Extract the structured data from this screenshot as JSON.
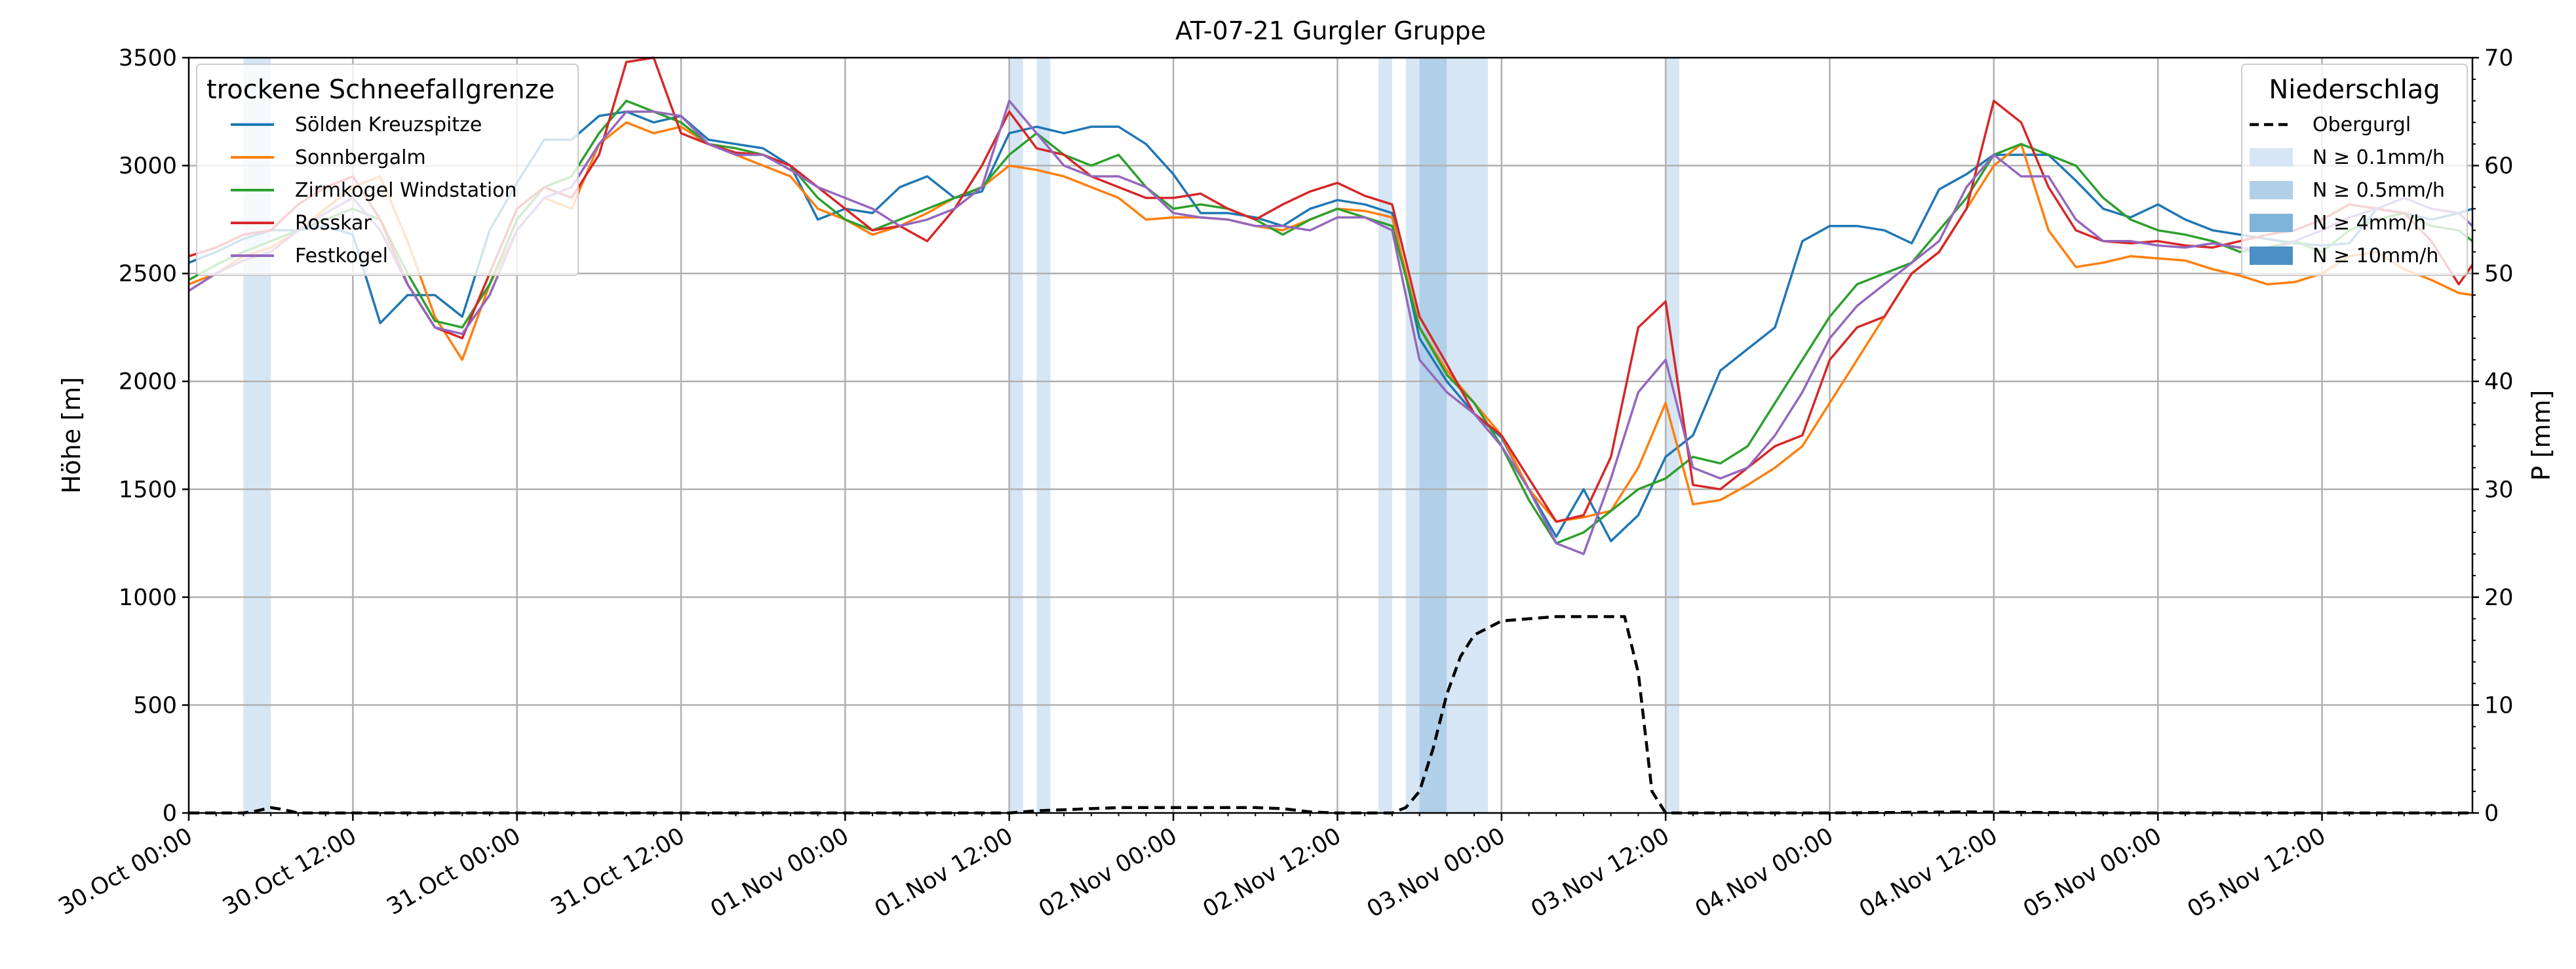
{
  "chart_data": {
    "type": "line",
    "title": "AT-07-21 Gurgler Gruppe",
    "ylabel": "Höhe [m]",
    "ylabel_right": "P [mm]",
    "ylim": [
      0,
      3500
    ],
    "ylim_right": [
      0,
      70
    ],
    "yticks": [
      0,
      500,
      1000,
      1500,
      2000,
      2500,
      3000,
      3500
    ],
    "yticks_right": [
      0,
      10,
      20,
      30,
      40,
      50,
      60,
      70
    ],
    "x_range_hours": [
      0,
      167
    ],
    "x_ticks": [
      {
        "h": 0,
        "label": "30.Oct 00:00"
      },
      {
        "h": 12,
        "label": "30.Oct 12:00"
      },
      {
        "h": 24,
        "label": "31.Oct 00:00"
      },
      {
        "h": 36,
        "label": "31.Oct 12:00"
      },
      {
        "h": 48,
        "label": "01.Nov 00:00"
      },
      {
        "h": 60,
        "label": "01.Nov 12:00"
      },
      {
        "h": 72,
        "label": "02.Nov 00:00"
      },
      {
        "h": 84,
        "label": "02.Nov 12:00"
      },
      {
        "h": 96,
        "label": "03.Nov 00:00"
      },
      {
        "h": 108,
        "label": "03.Nov 12:00"
      },
      {
        "h": 120,
        "label": "04.Nov 00:00"
      },
      {
        "h": 132,
        "label": "04.Nov 12:00"
      },
      {
        "h": 144,
        "label": "05.Nov 00:00"
      },
      {
        "h": 156,
        "label": "05.Nov 12:00"
      }
    ],
    "grid": true,
    "legend_left": {
      "title": "trockene Schneefallgrenze",
      "position": "top-left"
    },
    "legend_right": {
      "title": "Niederschlag",
      "position": "top-right",
      "entries": [
        {
          "label": "Obergurgl",
          "style": "dashed-line",
          "color": "#000000"
        },
        {
          "label": "N ≥ 0.1mm/h",
          "color": "#d6e6f4"
        },
        {
          "label": "N ≥ 0.5mm/h",
          "color": "#b0cfe8"
        },
        {
          "label": "N ≥ 4mm/h",
          "color": "#7fb3d8"
        },
        {
          "label": "N ≥ 10mm/h",
          "color": "#4a90c4"
        }
      ]
    },
    "precip_bands": [
      {
        "x0": 4,
        "x1": 6,
        "level": 0.1
      },
      {
        "x0": 60,
        "x1": 61,
        "level": 0.1
      },
      {
        "x0": 62,
        "x1": 63,
        "level": 0.1
      },
      {
        "x0": 87,
        "x1": 88,
        "level": 0.1
      },
      {
        "x0": 89,
        "x1": 90,
        "level": 0.1
      },
      {
        "x0": 90,
        "x1": 92,
        "level": 0.5
      },
      {
        "x0": 92,
        "x1": 95,
        "level": 0.1
      },
      {
        "x0": 108,
        "x1": 109,
        "level": 0.1
      }
    ],
    "series": [
      {
        "name": "Sölden Kreuzspitze",
        "color": "#1f77b4",
        "x": [
          0,
          2,
          4,
          6,
          8,
          10,
          12,
          14,
          16,
          18,
          20,
          22,
          24,
          26,
          28,
          30,
          32,
          34,
          36,
          38,
          40,
          42,
          44,
          46,
          48,
          50,
          52,
          54,
          56,
          58,
          60,
          62,
          64,
          66,
          68,
          70,
          72,
          74,
          76,
          78,
          80,
          82,
          84,
          86,
          88,
          90,
          92,
          94,
          96,
          98,
          100,
          102,
          104,
          106,
          108,
          110,
          112,
          114,
          116,
          118,
          120,
          122,
          124,
          126,
          128,
          130,
          132,
          134,
          136,
          138,
          140,
          142,
          144,
          146,
          148,
          150,
          152,
          154,
          156,
          158,
          160,
          162,
          164,
          166,
          167
        ],
        "y": [
          2550,
          2600,
          2660,
          2700,
          2700,
          2720,
          2680,
          2270,
          2400,
          2400,
          2300,
          2700,
          2920,
          3120,
          3120,
          3230,
          3250,
          3200,
          3230,
          3120,
          3100,
          3080,
          3000,
          2750,
          2800,
          2780,
          2900,
          2950,
          2850,
          2880,
          3150,
          3180,
          3150,
          3180,
          3180,
          3100,
          2960,
          2780,
          2780,
          2760,
          2720,
          2800,
          2840,
          2820,
          2780,
          2200,
          2000,
          1850,
          1740,
          1500,
          1280,
          1500,
          1260,
          1380,
          1650,
          1750,
          2050,
          2150,
          2250,
          2650,
          2720,
          2720,
          2700,
          2640,
          2890,
          2960,
          3050,
          3050,
          3050,
          2930,
          2800,
          2760,
          2820,
          2750,
          2700,
          2680,
          2660,
          2640,
          2630,
          2640,
          2800,
          2780,
          2750,
          2780,
          2800
        ]
      },
      {
        "name": "Sonnbergalm",
        "color": "#ff7f0e",
        "x": [
          0,
          2,
          4,
          6,
          8,
          10,
          12,
          14,
          16,
          18,
          20,
          22,
          24,
          26,
          28,
          30,
          32,
          34,
          36,
          38,
          40,
          42,
          44,
          46,
          48,
          50,
          52,
          54,
          56,
          58,
          60,
          62,
          64,
          66,
          68,
          70,
          72,
          74,
          76,
          78,
          80,
          82,
          84,
          86,
          88,
          90,
          92,
          94,
          96,
          98,
          100,
          102,
          104,
          106,
          108,
          110,
          112,
          114,
          116,
          118,
          120,
          122,
          124,
          126,
          128,
          130,
          132,
          134,
          136,
          138,
          140,
          142,
          144,
          146,
          148,
          150,
          152,
          154,
          156,
          158,
          160,
          162,
          164,
          166,
          167
        ],
        "y": [
          2450,
          2500,
          2580,
          2620,
          2700,
          2800,
          2900,
          2950,
          2650,
          2300,
          2100,
          2450,
          2700,
          2850,
          2800,
          3100,
          3200,
          3150,
          3180,
          3100,
          3050,
          3000,
          2950,
          2800,
          2750,
          2680,
          2720,
          2780,
          2850,
          2900,
          3000,
          2980,
          2950,
          2900,
          2850,
          2750,
          2760,
          2760,
          2750,
          2720,
          2700,
          2750,
          2800,
          2790,
          2760,
          2250,
          2050,
          1900,
          1750,
          1500,
          1350,
          1370,
          1400,
          1600,
          1900,
          1430,
          1450,
          1520,
          1600,
          1700,
          1900,
          2100,
          2300,
          2500,
          2600,
          2800,
          3000,
          3100,
          2700,
          2530,
          2550,
          2580,
          2570,
          2560,
          2520,
          2490,
          2450,
          2460,
          2500,
          2580,
          2600,
          2520,
          2470,
          2410,
          2400
        ]
      },
      {
        "name": "Zirmkogel Windstation",
        "color": "#2ca02c",
        "x": [
          0,
          2,
          4,
          6,
          8,
          10,
          12,
          14,
          16,
          18,
          20,
          22,
          24,
          26,
          28,
          30,
          32,
          34,
          36,
          38,
          40,
          42,
          44,
          46,
          48,
          50,
          52,
          54,
          56,
          58,
          60,
          62,
          64,
          66,
          68,
          70,
          72,
          74,
          76,
          78,
          80,
          82,
          84,
          86,
          88,
          90,
          92,
          94,
          96,
          98,
          100,
          102,
          104,
          106,
          108,
          110,
          112,
          114,
          116,
          118,
          120,
          122,
          124,
          126,
          128,
          130,
          132,
          134,
          136,
          138,
          140,
          142,
          144,
          146,
          148,
          150,
          152,
          154,
          156,
          158,
          160,
          162,
          164,
          166,
          167
        ],
        "y": [
          2470,
          2540,
          2600,
          2650,
          2700,
          2750,
          2800,
          2750,
          2500,
          2280,
          2250,
          2450,
          2750,
          2900,
          2950,
          3150,
          3300,
          3250,
          3200,
          3100,
          3080,
          3050,
          3000,
          2850,
          2750,
          2700,
          2750,
          2800,
          2850,
          2900,
          3050,
          3150,
          3050,
          3000,
          3050,
          2900,
          2800,
          2820,
          2800,
          2750,
          2680,
          2750,
          2800,
          2760,
          2720,
          2250,
          2030,
          1900,
          1700,
          1450,
          1250,
          1300,
          1400,
          1500,
          1550,
          1650,
          1620,
          1700,
          1900,
          2100,
          2300,
          2450,
          2500,
          2550,
          2700,
          2850,
          3050,
          3100,
          3050,
          3000,
          2850,
          2750,
          2700,
          2680,
          2650,
          2600,
          2620,
          2650,
          2600,
          2700,
          2750,
          2780,
          2720,
          2700,
          2650
        ]
      },
      {
        "name": "Rosskar",
        "color": "#d62728",
        "x": [
          0,
          2,
          4,
          6,
          8,
          10,
          12,
          14,
          16,
          18,
          20,
          22,
          24,
          26,
          28,
          30,
          32,
          34,
          36,
          38,
          40,
          42,
          44,
          46,
          48,
          50,
          52,
          54,
          56,
          58,
          60,
          62,
          64,
          66,
          68,
          70,
          72,
          74,
          76,
          78,
          80,
          82,
          84,
          86,
          88,
          90,
          92,
          94,
          96,
          98,
          100,
          102,
          104,
          106,
          108,
          110,
          112,
          114,
          116,
          118,
          120,
          122,
          124,
          126,
          128,
          130,
          132,
          134,
          136,
          138,
          140,
          142,
          144,
          146,
          148,
          150,
          152,
          154,
          156,
          158,
          160,
          162,
          164,
          166,
          167
        ],
        "y": [
          2580,
          2620,
          2680,
          2700,
          2820,
          2900,
          2950,
          2750,
          2450,
          2250,
          2200,
          2500,
          2800,
          2900,
          2850,
          3050,
          3480,
          3500,
          3150,
          3100,
          3060,
          3050,
          3000,
          2900,
          2800,
          2700,
          2720,
          2650,
          2800,
          3000,
          3250,
          3080,
          3050,
          2950,
          2900,
          2850,
          2850,
          2870,
          2800,
          2750,
          2820,
          2880,
          2920,
          2860,
          2820,
          2300,
          2080,
          1850,
          1750,
          1550,
          1350,
          1380,
          1650,
          2250,
          2370,
          1520,
          1500,
          1600,
          1700,
          1750,
          2100,
          2250,
          2300,
          2500,
          2600,
          2800,
          3300,
          3200,
          2900,
          2700,
          2650,
          2640,
          2650,
          2630,
          2620,
          2650,
          2680,
          2700,
          2750,
          2820,
          2800,
          2780,
          2650,
          2450,
          2540
        ]
      },
      {
        "name": "Festkogel",
        "color": "#9467bd",
        "x": [
          0,
          2,
          4,
          6,
          8,
          10,
          12,
          14,
          16,
          18,
          20,
          22,
          24,
          26,
          28,
          30,
          32,
          34,
          36,
          38,
          40,
          42,
          44,
          46,
          48,
          50,
          52,
          54,
          56,
          58,
          60,
          62,
          64,
          66,
          68,
          70,
          72,
          74,
          76,
          78,
          80,
          82,
          84,
          86,
          88,
          90,
          92,
          94,
          96,
          98,
          100,
          102,
          104,
          106,
          108,
          110,
          112,
          114,
          116,
          118,
          120,
          122,
          124,
          126,
          128,
          130,
          132,
          134,
          136,
          138,
          140,
          142,
          144,
          146,
          148,
          150,
          152,
          154,
          156,
          158,
          160,
          162,
          164,
          166,
          167
        ],
        "y": [
          2420,
          2500,
          2560,
          2600,
          2700,
          2780,
          2850,
          2700,
          2450,
          2250,
          2220,
          2400,
          2700,
          2850,
          2900,
          3100,
          3250,
          3250,
          3230,
          3100,
          3050,
          3050,
          2980,
          2900,
          2850,
          2800,
          2720,
          2750,
          2800,
          2900,
          3300,
          3150,
          3000,
          2950,
          2950,
          2900,
          2780,
          2760,
          2750,
          2720,
          2720,
          2700,
          2760,
          2760,
          2700,
          2100,
          1950,
          1850,
          1700,
          1500,
          1250,
          1200,
          1550,
          1950,
          2100,
          1600,
          1550,
          1600,
          1750,
          1950,
          2200,
          2350,
          2450,
          2550,
          2650,
          2900,
          3050,
          2950,
          2950,
          2750,
          2650,
          2650,
          2630,
          2620,
          2640,
          2620,
          2600,
          2650,
          2700,
          2760,
          2800,
          2850,
          2800,
          2780,
          2720
        ]
      },
      {
        "name": "Obergurgl",
        "axis": "right",
        "style": "dashed",
        "color": "#000000",
        "x": [
          0,
          4,
          5,
          6,
          7,
          8,
          60,
          62,
          64,
          66,
          68,
          70,
          72,
          74,
          76,
          78,
          80,
          82,
          84,
          86,
          88,
          89,
          90,
          91,
          92,
          93,
          94,
          96,
          98,
          100,
          102,
          104,
          105,
          106,
          107,
          108,
          110,
          120,
          130,
          140,
          150,
          160,
          167
        ],
        "y": [
          0,
          0,
          0.2,
          0.5,
          0.3,
          0,
          0,
          0.2,
          0.3,
          0.4,
          0.5,
          0.5,
          0.5,
          0.5,
          0.5,
          0.5,
          0.4,
          0.1,
          0,
          0,
          0,
          0.5,
          2,
          6,
          11,
          14.5,
          16.5,
          17.8,
          18,
          18.2,
          18.2,
          18.2,
          18.2,
          13,
          2,
          0,
          0,
          0,
          0.1,
          0,
          0,
          0,
          0
        ]
      }
    ]
  }
}
